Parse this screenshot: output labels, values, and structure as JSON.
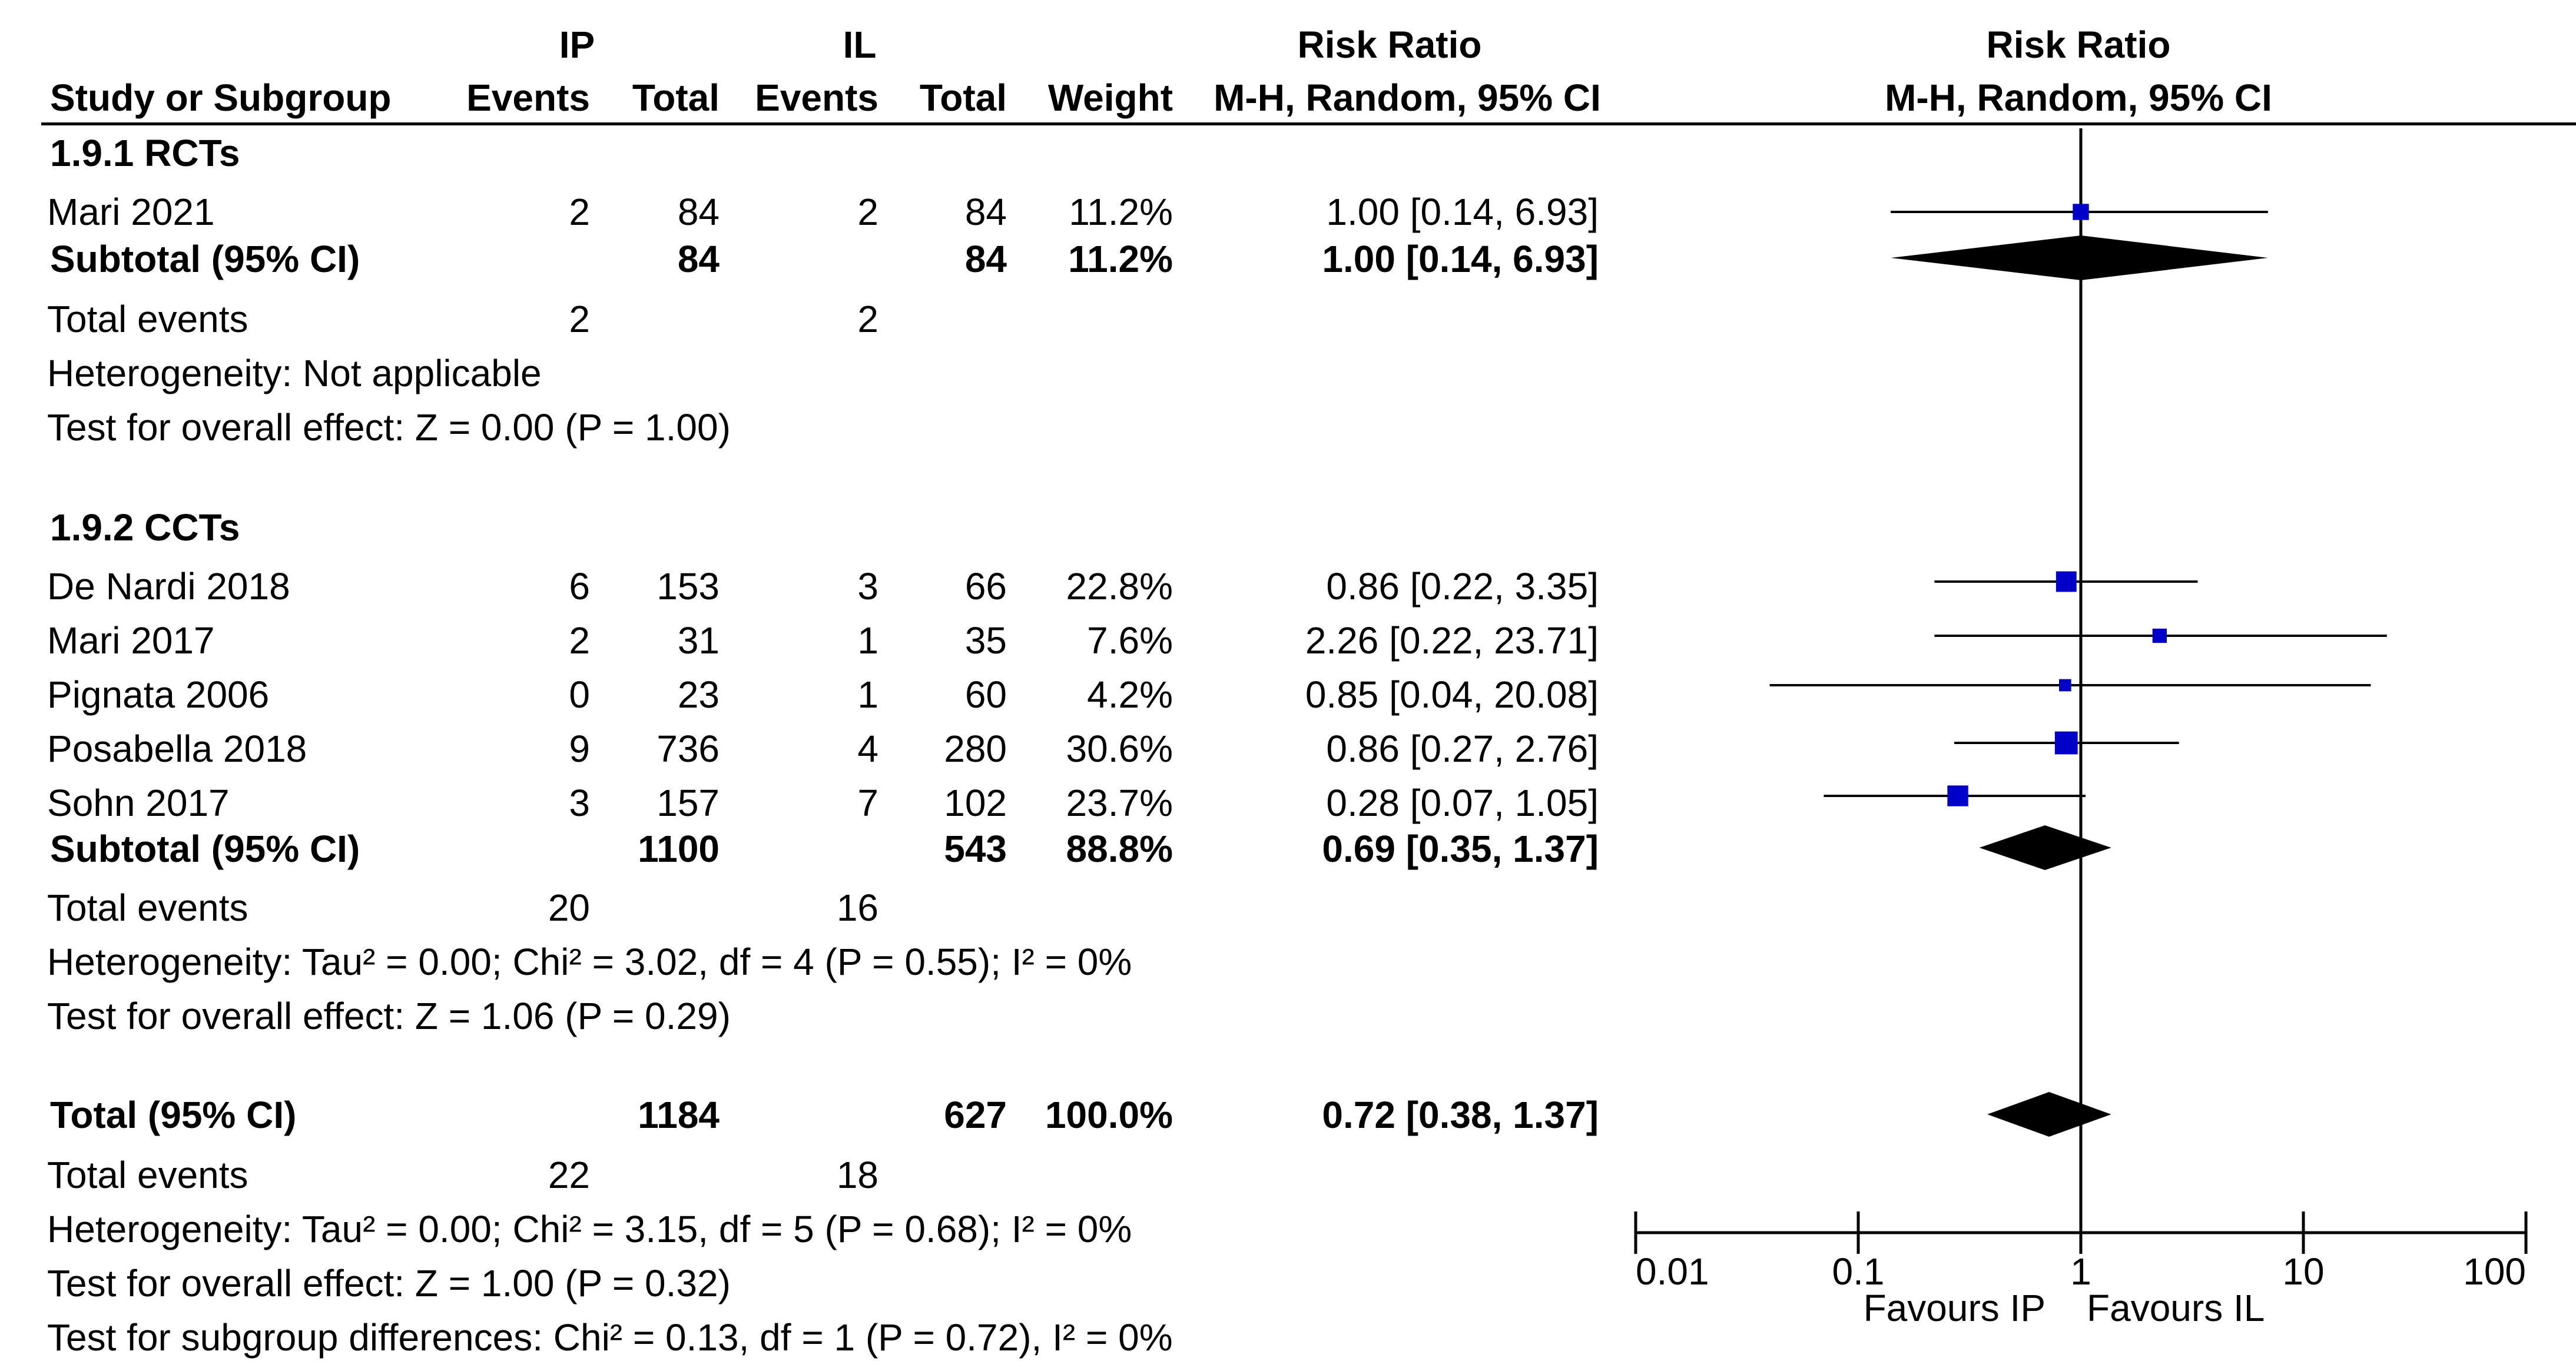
{
  "header": {
    "group1": "IP",
    "group2": "IL",
    "risk_ratio_col": "Risk Ratio",
    "risk_ratio_plot": "Risk Ratio",
    "study_col": "Study or Subgroup",
    "events1": "Events",
    "total1": "Total",
    "events2": "Events",
    "total2": "Total",
    "weight": "Weight",
    "method_col": "M-H, Random, 95% CI",
    "method_plot": "M-H, Random, 95% CI"
  },
  "subgroup1": {
    "title": "1.9.1 RCTs",
    "studies": [
      {
        "name": "Mari 2021",
        "e1": "2",
        "n1": "84",
        "e2": "2",
        "n2": "84",
        "weight": "11.2%",
        "ci": "1.00 [0.14, 6.93]"
      }
    ],
    "subtotal": {
      "label": "Subtotal (95% CI)",
      "n1": "84",
      "n2": "84",
      "weight": "11.2%",
      "ci": "1.00 [0.14, 6.93]"
    },
    "total_events": {
      "label": "Total events",
      "e1": "2",
      "e2": "2"
    },
    "heterogeneity": "Heterogeneity: Not applicable",
    "overall_effect": "Test for overall effect: Z = 0.00 (P = 1.00)"
  },
  "subgroup2": {
    "title": "1.9.2 CCTs",
    "studies": [
      {
        "name": "De Nardi 2018",
        "e1": "6",
        "n1": "153",
        "e2": "3",
        "n2": "66",
        "weight": "22.8%",
        "ci": "0.86 [0.22, 3.35]"
      },
      {
        "name": "Mari 2017",
        "e1": "2",
        "n1": "31",
        "e2": "1",
        "n2": "35",
        "weight": "7.6%",
        "ci": "2.26 [0.22, 23.71]"
      },
      {
        "name": "Pignata 2006",
        "e1": "0",
        "n1": "23",
        "e2": "1",
        "n2": "60",
        "weight": "4.2%",
        "ci": "0.85 [0.04, 20.08]"
      },
      {
        "name": "Posabella 2018",
        "e1": "9",
        "n1": "736",
        "e2": "4",
        "n2": "280",
        "weight": "30.6%",
        "ci": "0.86 [0.27, 2.76]"
      },
      {
        "name": "Sohn 2017",
        "e1": "3",
        "n1": "157",
        "e2": "7",
        "n2": "102",
        "weight": "23.7%",
        "ci": "0.28 [0.07, 1.05]"
      }
    ],
    "subtotal": {
      "label": "Subtotal (95% CI)",
      "n1": "1100",
      "n2": "543",
      "weight": "88.8%",
      "ci": "0.69 [0.35, 1.37]"
    },
    "total_events": {
      "label": "Total events",
      "e1": "20",
      "e2": "16"
    },
    "heterogeneity": "Heterogeneity: Tau² = 0.00; Chi² = 3.02, df = 4 (P = 0.55); I² = 0%",
    "overall_effect": "Test for overall effect: Z = 1.06 (P = 0.29)"
  },
  "overall": {
    "label": "Total (95% CI)",
    "n1": "1184",
    "n2": "627",
    "weight": "100.0%",
    "ci": "0.72 [0.38, 1.37]",
    "total_events": {
      "label": "Total events",
      "e1": "22",
      "e2": "18"
    },
    "heterogeneity": "Heterogeneity: Tau² = 0.00; Chi² = 3.15, df = 5 (P = 0.68); I² = 0%",
    "overall_effect": "Test for overall effect: Z = 1.00 (P = 0.32)",
    "subgroup_diff": "Test for subgroup differences: Chi² = 0.13, df = 1 (P = 0.72), I² = 0%"
  },
  "chart_data": {
    "type": "forest",
    "scale": "log",
    "xlim": [
      0.01,
      100
    ],
    "ticks": [
      0.01,
      0.1,
      1,
      10,
      100
    ],
    "tick_labels": [
      "0.01",
      "0.1",
      "1",
      "10",
      "100"
    ],
    "favours_left": "Favours IP",
    "favours_right": "Favours IL",
    "null_value": 1,
    "studies": [
      {
        "name": "Mari 2021",
        "rr": 1.0,
        "lo": 0.14,
        "hi": 6.93,
        "weight": 11.2
      },
      {
        "name": "De Nardi 2018",
        "rr": 0.86,
        "lo": 0.22,
        "hi": 3.35,
        "weight": 22.8
      },
      {
        "name": "Mari 2017",
        "rr": 2.26,
        "lo": 0.22,
        "hi": 23.71,
        "weight": 7.6
      },
      {
        "name": "Pignata 2006",
        "rr": 0.85,
        "lo": 0.04,
        "hi": 20.08,
        "weight": 4.2
      },
      {
        "name": "Posabella 2018",
        "rr": 0.86,
        "lo": 0.27,
        "hi": 2.76,
        "weight": 30.6
      },
      {
        "name": "Sohn 2017",
        "rr": 0.28,
        "lo": 0.07,
        "hi": 1.05,
        "weight": 23.7
      }
    ],
    "summaries": [
      {
        "name": "Subtotal 1.9.1 RCTs",
        "rr": 1.0,
        "lo": 0.14,
        "hi": 6.93
      },
      {
        "name": "Subtotal 1.9.2 CCTs",
        "rr": 0.69,
        "lo": 0.35,
        "hi": 1.37
      },
      {
        "name": "Total",
        "rr": 0.72,
        "lo": 0.38,
        "hi": 1.37
      }
    ],
    "colors": {
      "study_marker": "#0000c8",
      "lines": "#000000",
      "diamond": "#000000"
    }
  }
}
